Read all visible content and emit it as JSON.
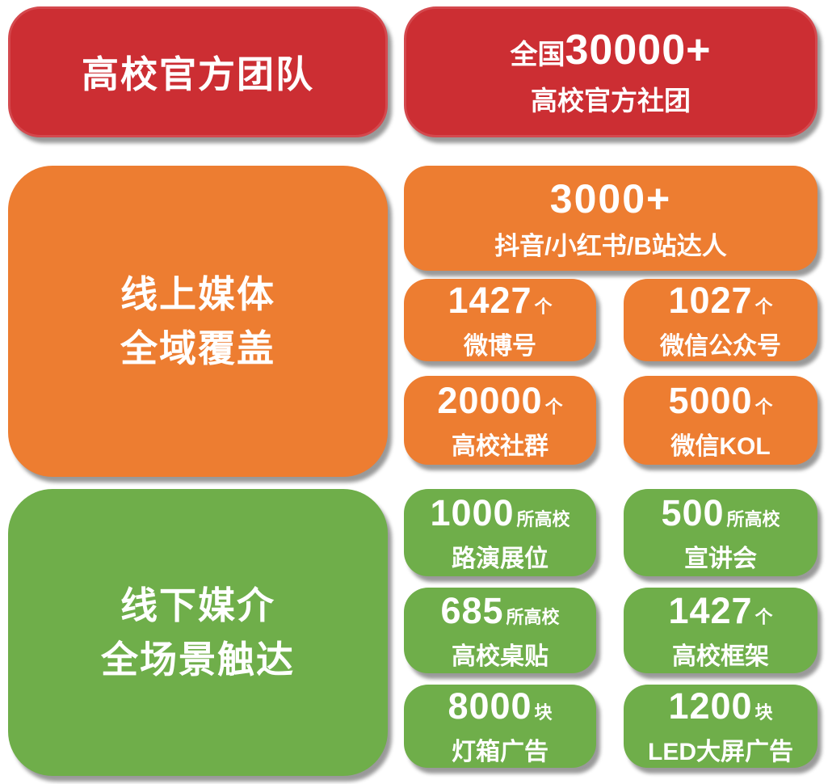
{
  "palette": {
    "red": "#cc2e33",
    "red_border": "#d4494e",
    "orange": "#ed7d31",
    "green": "#6fae4a",
    "text": "#ffffff"
  },
  "sections": {
    "teams": {
      "header": "高校官方团队",
      "stat_prefix": "全国",
      "stat_value": "30000+",
      "stat_label": "高校官方社团"
    },
    "online": {
      "header_line1": "线上媒体",
      "header_line2": "全域覆盖",
      "hero": {
        "value": "3000+",
        "label": "抖音/小红书/B站达人"
      },
      "stats": [
        {
          "value": "1427",
          "unit": "个",
          "label": "微博号"
        },
        {
          "value": "1027",
          "unit": "个",
          "label": "微信公众号"
        },
        {
          "value": "20000",
          "unit": "个",
          "label": "高校社群"
        },
        {
          "value": "5000",
          "unit": "个",
          "label": "微信KOL"
        }
      ]
    },
    "offline": {
      "header_line1": "线下媒介",
      "header_line2": "全场景触达",
      "stats": [
        {
          "value": "1000",
          "unit": "所高校",
          "label": "路演展位"
        },
        {
          "value": "500",
          "unit": "所高校",
          "label": "宣讲会"
        },
        {
          "value": "685",
          "unit": "所高校",
          "label": "高校桌贴"
        },
        {
          "value": "1427",
          "unit": "个",
          "label": "高校框架"
        },
        {
          "value": "8000",
          "unit": "块",
          "label": "灯箱广告"
        },
        {
          "value": "1200",
          "unit": "块",
          "label": "LED大屏广告"
        }
      ]
    }
  }
}
